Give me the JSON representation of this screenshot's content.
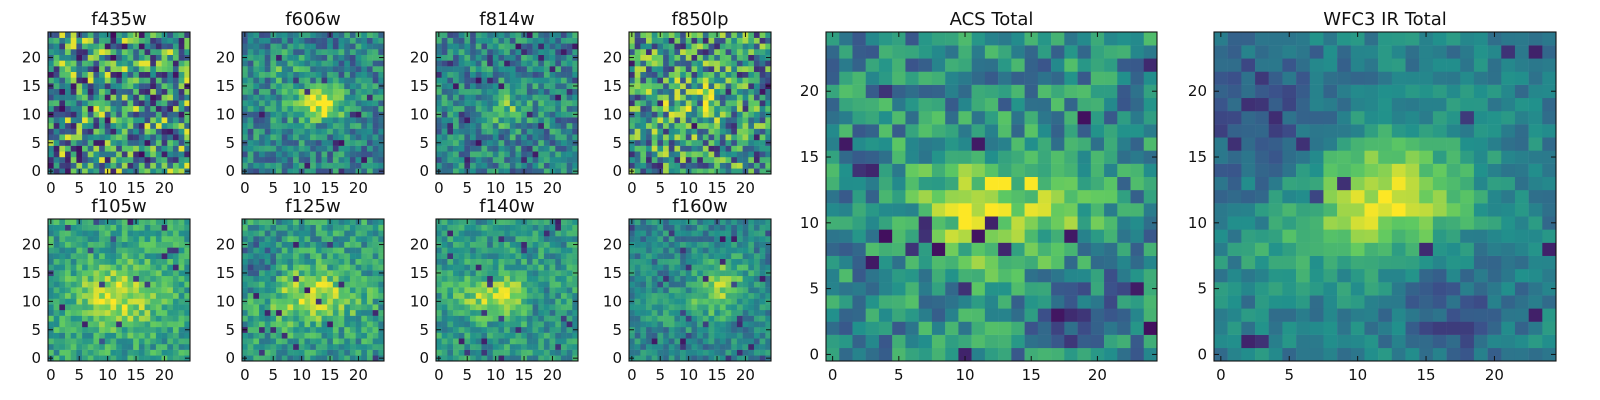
{
  "chart_data": {
    "type": "heatmap",
    "figure_layout": "4x2 grid of filter panels plus two larger total panels",
    "colormap": [
      "#440154",
      "#3b528b",
      "#21918c",
      "#5ec962",
      "#fde725"
    ],
    "panels": [
      {
        "id": "f435w",
        "title": "f435w",
        "grid": [
          25,
          25
        ],
        "xlim": [
          0,
          24
        ],
        "ylim": [
          0,
          24
        ],
        "xticks": [
          0,
          5,
          10,
          15,
          20
        ],
        "yticks": [
          0,
          5,
          10,
          15,
          20
        ],
        "pattern": "dense noisy map with scattered dark pixels",
        "seed": 101
      },
      {
        "id": "f606w",
        "title": "f606w",
        "grid": [
          25,
          25
        ],
        "xlim": [
          0,
          24
        ],
        "ylim": [
          0,
          24
        ],
        "xticks": [
          0,
          5,
          10,
          15,
          20
        ],
        "yticks": [
          0,
          5,
          10,
          15,
          20
        ],
        "pattern": "bright compact source near center",
        "seed": 202
      },
      {
        "id": "f814w",
        "title": "f814w",
        "grid": [
          25,
          25
        ],
        "xlim": [
          0,
          24
        ],
        "ylim": [
          0,
          24
        ],
        "xticks": [
          0,
          5,
          10,
          15,
          20
        ],
        "yticks": [
          0,
          5,
          10,
          15,
          20
        ],
        "pattern": "noisy field with faint central enhancement",
        "seed": 303
      },
      {
        "id": "f850lp",
        "title": "f850lp",
        "grid": [
          25,
          25
        ],
        "xlim": [
          0,
          24
        ],
        "ylim": [
          0,
          24
        ],
        "xticks": [
          0,
          5,
          10,
          15,
          20
        ],
        "yticks": [
          0,
          5,
          10,
          15,
          20
        ],
        "pattern": "high noise with warm central region",
        "seed": 404
      },
      {
        "id": "f105w",
        "title": "f105w",
        "grid": [
          25,
          25
        ],
        "xlim": [
          0,
          24
        ],
        "ylim": [
          0,
          24
        ],
        "xticks": [
          0,
          5,
          10,
          15,
          20
        ],
        "yticks": [
          0,
          5,
          10,
          15,
          20
        ],
        "pattern": "broad bright central emission",
        "seed": 505
      },
      {
        "id": "f125w",
        "title": "f125w",
        "grid": [
          25,
          25
        ],
        "xlim": [
          0,
          24
        ],
        "ylim": [
          0,
          24
        ],
        "xticks": [
          0,
          5,
          10,
          15,
          20
        ],
        "yticks": [
          0,
          5,
          10,
          15,
          20
        ],
        "pattern": "extended central glow with dark patches",
        "seed": 606
      },
      {
        "id": "f140w",
        "title": "f140w",
        "grid": [
          25,
          25
        ],
        "xlim": [
          0,
          24
        ],
        "ylim": [
          0,
          24
        ],
        "xticks": [
          0,
          5,
          10,
          15,
          20
        ],
        "yticks": [
          0,
          5,
          10,
          15,
          20
        ],
        "pattern": "bright horizontal core and scattered dark clumps",
        "seed": 707
      },
      {
        "id": "f160w",
        "title": "f160w",
        "grid": [
          25,
          25
        ],
        "xlim": [
          0,
          24
        ],
        "ylim": [
          0,
          24
        ],
        "xticks": [
          0,
          5,
          10,
          15,
          20
        ],
        "yticks": [
          0,
          5,
          10,
          15,
          20
        ],
        "pattern": "smooth field with diagonal bright structure",
        "seed": 808
      },
      {
        "id": "acs-total",
        "title": "ACS Total",
        "grid": [
          25,
          25
        ],
        "xlim": [
          0,
          24
        ],
        "ylim": [
          0,
          24
        ],
        "xticks": [
          0,
          5,
          10,
          15,
          20
        ],
        "yticks": [
          0,
          5,
          10,
          15,
          20
        ],
        "pattern": "combined optical map with bright source in center",
        "seed": 909
      },
      {
        "id": "wfc3-ir-total",
        "title": "WFC3 IR Total",
        "grid": [
          25,
          25
        ],
        "xlim": [
          0,
          24
        ],
        "ylim": [
          0,
          24
        ],
        "xticks": [
          0,
          5,
          10,
          15,
          20
        ],
        "yticks": [
          0,
          5,
          10,
          15,
          20
        ],
        "pattern": "smooth infrared combined map with bright central source",
        "seed": 1001
      }
    ]
  }
}
